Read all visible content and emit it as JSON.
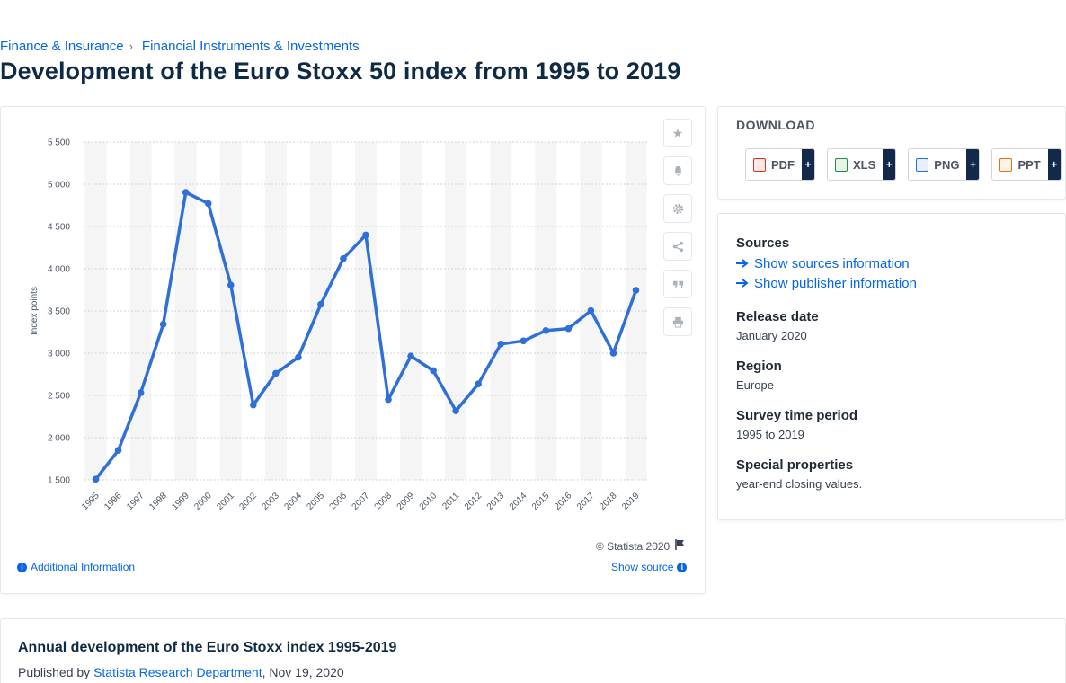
{
  "breadcrumb": [
    {
      "label": "Finance & Insurance"
    },
    {
      "label": "Financial Instruments & Investments"
    }
  ],
  "page_title": "Development of the Euro Stoxx 50 index from 1995 to 2019",
  "chart_data": {
    "type": "line",
    "title": "",
    "xlabel": "",
    "ylabel": "Index points",
    "categories": [
      "1995",
      "1996",
      "1997",
      "1998",
      "1999",
      "2000",
      "2001",
      "2002",
      "2003",
      "2004",
      "2005",
      "2006",
      "2007",
      "2008",
      "2009",
      "2010",
      "2011",
      "2012",
      "2013",
      "2014",
      "2015",
      "2016",
      "2017",
      "2018",
      "2019"
    ],
    "series": [
      {
        "name": "",
        "values": [
          1507,
          1850,
          2532,
          3342,
          4904,
          4772,
          3806,
          2386,
          2761,
          2951,
          3579,
          4120,
          4400,
          2451,
          2966,
          2793,
          2317,
          2636,
          3109,
          3146,
          3268,
          3291,
          3504,
          3001,
          3745
        ]
      }
    ],
    "ylim": [
      1500,
      5500
    ],
    "yticks": [
      1500,
      2000,
      2500,
      3000,
      3500,
      4000,
      4500,
      5000,
      5500
    ],
    "ytick_labels": [
      "1 500",
      "2 000",
      "2 500",
      "3 000",
      "3 500",
      "4 000",
      "4 500",
      "5 000",
      "5 500"
    ],
    "grid": true,
    "line_color": "#2e6fd8"
  },
  "chart_footer": {
    "copyright": "© Statista 2020",
    "additional_info": "Additional Information",
    "show_source": "Show source"
  },
  "download": {
    "title": "DOWNLOAD",
    "formats": [
      {
        "label": "PDF",
        "color": "#d93025"
      },
      {
        "label": "XLS",
        "color": "#1e8e3e"
      },
      {
        "label": "PNG",
        "color": "#1a73e8"
      },
      {
        "label": "PPT",
        "color": "#e8710a"
      }
    ],
    "plus": "+"
  },
  "info": {
    "sources_label": "Sources",
    "show_sources": "Show sources information",
    "show_publisher": "Show publisher information",
    "release_label": "Release date",
    "release_value": "January 2020",
    "region_label": "Region",
    "region_value": "Europe",
    "period_label": "Survey time period",
    "period_value": "1995 to 2019",
    "special_label": "Special properties",
    "special_value": "year-end closing values."
  },
  "bottom": {
    "title": "Annual development of the Euro Stoxx index 1995-2019",
    "published_prefix": "Published by",
    "publisher": "Statista Research Department",
    "date": ", Nov 19, 2020"
  }
}
